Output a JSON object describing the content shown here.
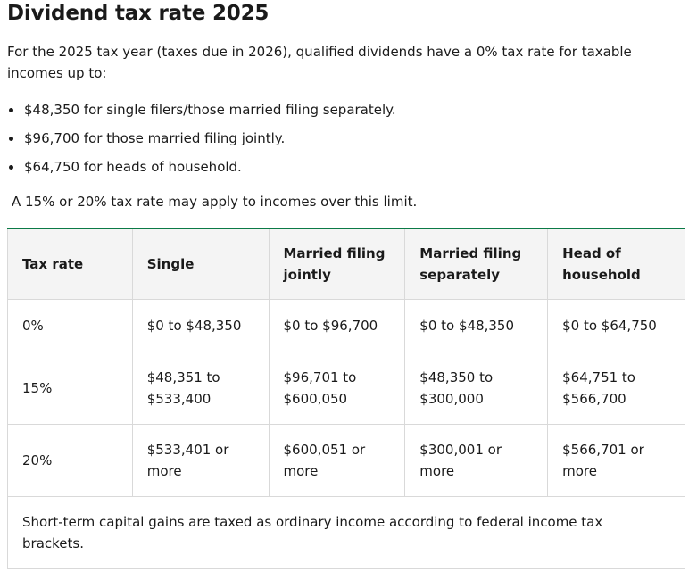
{
  "article": {
    "title": "Dividend tax rate 2025",
    "intro": "For the 2025 tax year (taxes due in 2026), qualified dividends have a 0% tax rate for taxable incomes up to:",
    "bullets": [
      "$48,350 for single filers/those married filing separately.",
      "$96,700 for those married filing jointly.",
      "$64,750 for heads of household."
    ],
    "note": "A 15% or 20% tax rate may apply to incomes over this limit."
  },
  "table": {
    "headers": [
      "Tax rate",
      "Single",
      "Married filing jointly",
      "Married filing separately",
      "Head of household"
    ],
    "rows": [
      [
        "0%",
        "$0 to $48,350",
        "$0 to $96,700",
        "$0 to $48,350",
        "$0 to $64,750"
      ],
      [
        "15%",
        "$48,351 to $533,400",
        "$96,701 to $600,050",
        "$48,350 to $300,000",
        "$64,751 to $566,700"
      ],
      [
        "20%",
        "$533,401 or more",
        "$600,051 or more",
        "$300,001 or more",
        "$566,701 or more"
      ]
    ],
    "footer": "Short-term capital gains are taxed as ordinary income according to federal income tax brackets."
  },
  "colors": {
    "accent": "#0b7a46",
    "header_bg": "#f4f4f4",
    "border": "#d9d9d9",
    "text": "#1a1a1a"
  }
}
